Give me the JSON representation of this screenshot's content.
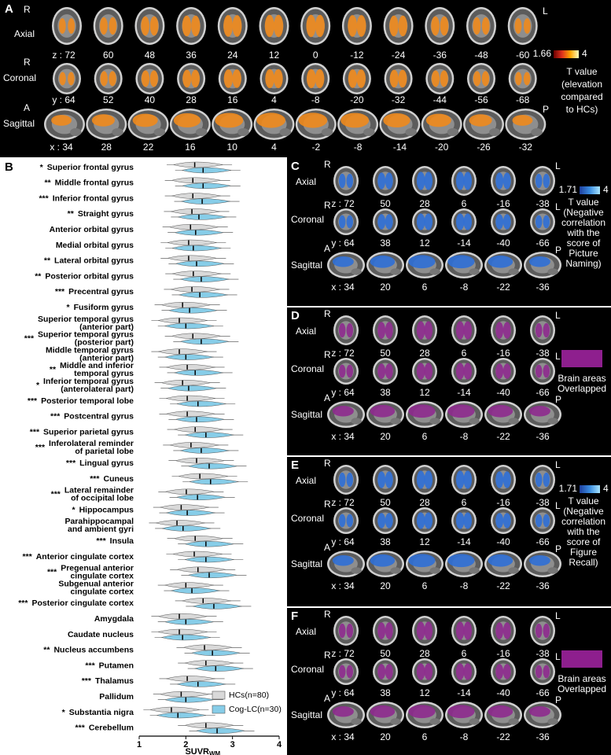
{
  "brain_panels": [
    {
      "label": "A",
      "overlay_color": "#f08a1c",
      "rows": [
        {
          "name": "Axial",
          "left": "R",
          "right": "L",
          "coords": [
            "z : 72",
            "60",
            "48",
            "36",
            "24",
            "12",
            "0",
            "-12",
            "-24",
            "-36",
            "-48",
            "-60"
          ]
        },
        {
          "name": "Coronal",
          "left": "R",
          "right": null,
          "coords": [
            "y : 64",
            "52",
            "40",
            "28",
            "16",
            "4",
            "-8",
            "-20",
            "-32",
            "-44",
            "-56",
            "-68"
          ]
        },
        {
          "name": "Sagittal",
          "left": "A",
          "right": "P",
          "coords": [
            "x : 34",
            "28",
            "22",
            "16",
            "10",
            "4",
            "-2",
            "-8",
            "-14",
            "-20",
            "-26",
            "-32"
          ]
        }
      ],
      "legend": {
        "type": "colorbar",
        "min": 1.66,
        "max": 4,
        "colors": [
          "#6b0000",
          "#e0301e",
          "#ffa500",
          "#ffffc0"
        ],
        "lines": [
          "T value",
          "(elevation",
          "compared",
          "to HCs)"
        ]
      }
    },
    {
      "label": "C",
      "overlay_color": "#2f6fd6",
      "rows": [
        {
          "name": "Axial",
          "left": "R",
          "right": "L",
          "coords": [
            "z : 72",
            "50",
            "28",
            "6",
            "-16",
            "-38"
          ]
        },
        {
          "name": "Coronal",
          "left": "R",
          "right": "L",
          "coords": [
            "y : 64",
            "38",
            "12",
            "-14",
            "-40",
            "-66"
          ]
        },
        {
          "name": "Sagittal",
          "left": "A",
          "right": "P",
          "coords": [
            "x : 34",
            "20",
            "6",
            "-8",
            "-22",
            "-36"
          ]
        }
      ],
      "legend": {
        "type": "colorbar",
        "min": 1.71,
        "max": 4,
        "colors": [
          "#1f3f9f",
          "#3a8de0",
          "#a8e4ff"
        ],
        "lines": [
          "T value",
          "(Negative",
          "correlation",
          "with the",
          "score of",
          "Picture",
          "Naming)"
        ]
      }
    },
    {
      "label": "D",
      "overlay_color": "#8e2a8e",
      "rows": [
        {
          "name": "Axial",
          "left": "R",
          "right": "L",
          "coords": [
            "z : 72",
            "50",
            "28",
            "6",
            "-16",
            "-38"
          ]
        },
        {
          "name": "Coronal",
          "left": "R",
          "right": "L",
          "coords": [
            "y : 64",
            "38",
            "12",
            "-14",
            "-40",
            "-66"
          ]
        },
        {
          "name": "Sagittal",
          "left": "A",
          "right": "P",
          "coords": [
            "x : 34",
            "20",
            "6",
            "-8",
            "-22",
            "-36"
          ]
        }
      ],
      "legend": {
        "type": "swatch",
        "color": "#8e1f8e",
        "lines": [
          "Brain areas",
          "Overlapped"
        ]
      }
    },
    {
      "label": "E",
      "overlay_color": "#2f6fd6",
      "rows": [
        {
          "name": "Axial",
          "left": "R",
          "right": "L",
          "coords": [
            "z : 72",
            "50",
            "28",
            "6",
            "-16",
            "-38"
          ]
        },
        {
          "name": "Coronal",
          "left": "R",
          "right": "L",
          "coords": [
            "y : 64",
            "38",
            "12",
            "-14",
            "-40",
            "-66"
          ]
        },
        {
          "name": "Sagittal",
          "left": "A",
          "right": "P",
          "coords": [
            "x : 34",
            "20",
            "6",
            "-8",
            "-22",
            "-36"
          ]
        }
      ],
      "legend": {
        "type": "colorbar",
        "min": 1.71,
        "max": 4,
        "colors": [
          "#1f3f9f",
          "#3a8de0",
          "#a8e4ff"
        ],
        "lines": [
          "T value",
          "(Negative",
          "correlation",
          "with the",
          "score of",
          "Figure",
          "Recall)"
        ]
      }
    },
    {
      "label": "F",
      "overlay_color": "#8e2a8e",
      "rows": [
        {
          "name": "Axial",
          "left": "R",
          "right": "L",
          "coords": [
            "z : 72",
            "50",
            "28",
            "6",
            "-16",
            "-38"
          ]
        },
        {
          "name": "Coronal",
          "left": "R",
          "right": "L",
          "coords": [
            "y : 64",
            "38",
            "12",
            "-14",
            "-40",
            "-66"
          ]
        },
        {
          "name": "Sagittal",
          "left": "A",
          "right": "P",
          "coords": [
            "x : 34",
            "20",
            "6",
            "-8",
            "-22",
            "-36"
          ]
        }
      ],
      "legend": {
        "type": "swatch",
        "color": "#8e1f8e",
        "lines": [
          "Brain areas",
          "Overlapped"
        ]
      }
    }
  ],
  "chart_data": {
    "type": "violin",
    "panel_label": "B",
    "categories": [
      "Superior frontal gyrus",
      "Middle frontal gyrus",
      "Inferior frontal gyrus",
      "Straight gyrus",
      "Anterior orbital gyrus",
      "Medial orbital gyrus",
      "Lateral orbital gyrus",
      "Posterior orbital gyrus",
      "Precentral gyrus",
      "Fusiform gyrus",
      [
        "Superior temporal gyrus",
        "(anterior part)"
      ],
      [
        "Superior temporal gyrus",
        "(posterior part)"
      ],
      [
        "Middle temporal gyrus",
        "(anterior part)"
      ],
      [
        "Middle and inferior",
        "temporal gyrus"
      ],
      [
        "Inferior temporal gyrus",
        "(anterolateral part)"
      ],
      "Posterior temporal lobe",
      "Postcentral gyrus",
      "Superior parietal gyrus",
      [
        "Inferolateral reminder",
        "of parietal lobe"
      ],
      "Lingual gyrus",
      "Cuneus",
      [
        "Lateral remainder",
        "of occipital lobe"
      ],
      "Hippocampus",
      [
        "Parahippocampal",
        "and ambient gyri"
      ],
      "Insula",
      "Anterior cingulate cortex",
      [
        "Pregenual anterior",
        "cingulate cortex"
      ],
      [
        "Subgenual anterior",
        "cingulate cortex"
      ],
      "Posterior cingulate cortex",
      "Amygdala",
      "Caudate nucleus",
      "Nucleus accumbens",
      "Putamen",
      "Thalamus",
      "Pallidum",
      "Substantia nigra",
      "Cerebellum"
    ],
    "significance": [
      "*",
      "**",
      "***",
      "**",
      null,
      null,
      "**",
      "**",
      "***",
      "*",
      null,
      "***",
      null,
      "**",
      "*",
      "***",
      "***",
      "***",
      "***",
      "***",
      "***",
      "***",
      "*",
      null,
      "***",
      "***",
      "***",
      null,
      "***",
      null,
      null,
      "**",
      "***",
      "***",
      null,
      "*",
      "***"
    ],
    "series": [
      {
        "name": "HCs(n=80)",
        "color": "#d9d9d9",
        "values": [
          2.19,
          2.15,
          2.15,
          2.13,
          2.1,
          2.06,
          2.06,
          2.16,
          2.13,
          1.93,
          1.86,
          2.15,
          1.86,
          2.03,
          1.93,
          2.03,
          2.03,
          2.2,
          2.11,
          2.23,
          2.3,
          2.01,
          1.9,
          1.81,
          2.2,
          2.18,
          2.26,
          2.0,
          2.37,
          1.86,
          1.86,
          2.4,
          2.43,
          2.03,
          1.9,
          1.69,
          2.43
        ]
      },
      {
        "name": "Cog-LC(n=30)",
        "color": "#87cde8",
        "values": [
          2.37,
          2.37,
          2.35,
          2.28,
          2.21,
          2.16,
          2.23,
          2.33,
          2.3,
          2.08,
          2.0,
          2.33,
          2.0,
          2.2,
          2.06,
          2.26,
          2.23,
          2.43,
          2.33,
          2.5,
          2.53,
          2.25,
          2.03,
          1.94,
          2.43,
          2.43,
          2.5,
          2.13,
          2.6,
          2.0,
          1.93,
          2.57,
          2.64,
          2.26,
          2.0,
          1.83,
          2.67
        ]
      }
    ],
    "xlabel": "SUVR",
    "xlabel_subscript": "WM",
    "xlim": [
      1,
      4
    ],
    "xticks": [
      1,
      2,
      3,
      4
    ],
    "legend": "bottom-right"
  }
}
